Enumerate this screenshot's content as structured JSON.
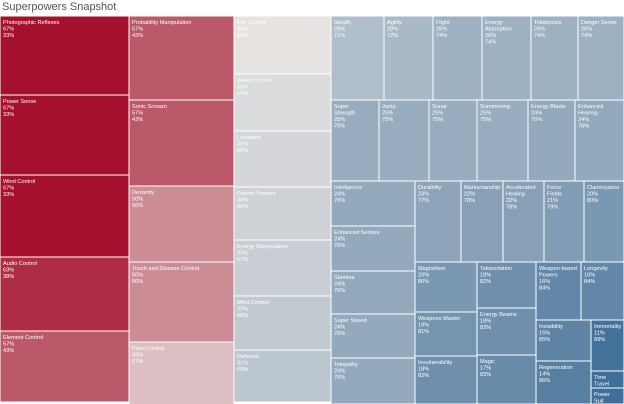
{
  "chart_data": {
    "type": "treemap",
    "title": "Superpowers Snapshot",
    "color_scale": {
      "low": "#3f6e98",
      "mid": "#e6e3e1",
      "high": "#a5102c"
    },
    "columns": [
      [
        {
          "label": "Photographic Reflexes",
          "pct_a": "67%",
          "pct_b": "33%"
        },
        {
          "label": "Power Sense",
          "pct_a": "67%",
          "pct_b": "33%"
        },
        {
          "label": "Wind Control",
          "pct_a": "67%",
          "pct_b": "33%"
        },
        {
          "label": "Audio Control",
          "pct_a": "63%",
          "pct_b": "38%"
        },
        {
          "label": "Element Control",
          "pct_a": "57%",
          "pct_b": "43%"
        }
      ],
      [
        {
          "label": "Probability Manipulation",
          "pct_a": "57%",
          "pct_b": "43%"
        },
        {
          "label": "Sonic Scream",
          "pct_a": "57%",
          "pct_b": "43%"
        },
        {
          "label": "Dexterity",
          "pct_a": "50%",
          "pct_b": "50%"
        },
        {
          "label": "Touch and Disease Control",
          "pct_a": "50%",
          "pct_b": "50%"
        },
        {
          "label": "Plant Control",
          "pct_a": "43%",
          "pct_b": "57%"
        }
      ],
      [
        {
          "label": "Fire Control",
          "pct_a": "38%",
          "pct_b": "62%"
        },
        {
          "label": "Water Control",
          "pct_a": "36%",
          "pct_b": "64%"
        },
        {
          "label": "Levitation",
          "pct_a": "35%",
          "pct_b": "65%"
        },
        {
          "label": "Psionic Powers",
          "pct_a": "34%",
          "pct_b": "66%"
        },
        {
          "label": "Energy Manipulation",
          "pct_a": "33%",
          "pct_b": "67%"
        },
        {
          "label": "Mind Control",
          "pct_a": "32%",
          "pct_b": "68%"
        },
        {
          "label": "Reflexes",
          "pct_a": "31%",
          "pct_b": "69%"
        }
      ],
      [
        {
          "label": "Stealth",
          "pct_a": "29%",
          "pct_b": "71%"
        },
        {
          "label": "Agility",
          "pct_a": "28%",
          "pct_b": "72%"
        },
        {
          "label": "Flight",
          "pct_a": "26%",
          "pct_b": "74%"
        },
        {
          "label": "Energy Absorption",
          "pct_a": "26%",
          "pct_b": "74%"
        },
        {
          "label": "Telekinesis",
          "pct_a": "26%",
          "pct_b": "74%"
        },
        {
          "label": "Danger Sense",
          "pct_a": "26%",
          "pct_b": "74%"
        },
        {
          "label": "Super Strength",
          "pct_a": "25%",
          "pct_b": "75%"
        },
        {
          "label": "Jump",
          "pct_a": "25%",
          "pct_b": "75%"
        },
        {
          "label": "Sonar",
          "pct_a": "25%",
          "pct_b": "75%"
        },
        {
          "label": "Summoning",
          "pct_a": "25%",
          "pct_b": "75%"
        },
        {
          "label": "Energy Blasts",
          "pct_a": "24%",
          "pct_b": "76%"
        },
        {
          "label": "Enhanced Hearing",
          "pct_a": "24%",
          "pct_b": "76%"
        },
        {
          "label": "Intelligence",
          "pct_a": "24%",
          "pct_b": "76%"
        },
        {
          "label": "Enhanced Senses",
          "pct_a": "24%",
          "pct_b": "76%"
        },
        {
          "label": "Stamina",
          "pct_a": "24%",
          "pct_b": "76%"
        },
        {
          "label": "Super Speed",
          "pct_a": "24%",
          "pct_b": "76%"
        },
        {
          "label": "Telepathy",
          "pct_a": "24%",
          "pct_b": "76%"
        },
        {
          "label": "Durability",
          "pct_a": "23%",
          "pct_b": "77%"
        },
        {
          "label": "Marksmanship",
          "pct_a": "22%",
          "pct_b": "78%"
        },
        {
          "label": "Accelerated Healing",
          "pct_a": "22%",
          "pct_b": "78%"
        },
        {
          "label": "Force Fields",
          "pct_a": "21%",
          "pct_b": "79%"
        },
        {
          "label": "Clairvoyance",
          "pct_a": "20%",
          "pct_b": "80%"
        },
        {
          "label": "Magnetism",
          "pct_a": "20%",
          "pct_b": "80%"
        },
        {
          "label": "Teleportation",
          "pct_a": "18%",
          "pct_b": "82%"
        },
        {
          "label": "Weapon-based Powers",
          "pct_a": "16%",
          "pct_b": "84%"
        },
        {
          "label": "Longevity",
          "pct_a": "16%",
          "pct_b": "84%"
        },
        {
          "label": "Weapons Master",
          "pct_a": "19%",
          "pct_b": "81%"
        },
        {
          "label": "Energy Beams",
          "pct_a": "18%",
          "pct_b": "83%"
        },
        {
          "label": "Invisibility",
          "pct_a": "15%",
          "pct_b": "85%"
        },
        {
          "label": "Immortality",
          "pct_a": "11%",
          "pct_b": "89%"
        },
        {
          "label": "Invulnerability",
          "pct_a": "18%",
          "pct_b": "82%"
        },
        {
          "label": "Magic",
          "pct_a": "17%",
          "pct_b": "83%"
        },
        {
          "label": "Regeneration",
          "pct_a": "14%",
          "pct_b": "86%"
        },
        {
          "label": "Time Travel",
          "pct_a": "",
          "pct_b": ""
        },
        {
          "label": "Power Suit",
          "pct_a": "",
          "pct_b": ""
        }
      ]
    ]
  }
}
